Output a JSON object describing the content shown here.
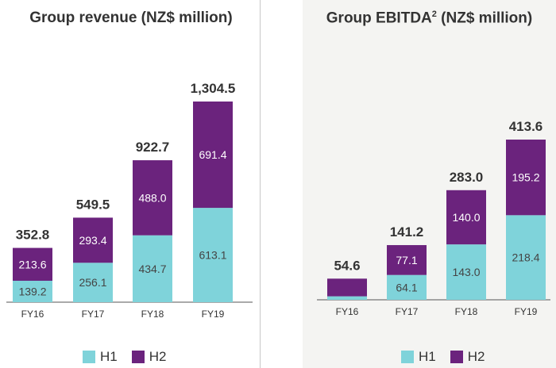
{
  "colors": {
    "h1": "#7fd3da",
    "h2": "#6b237d",
    "axis": "#555555",
    "total_text": "#333333",
    "bar_text": "#444444",
    "bar_text_h2": "#ffffff"
  },
  "legend": {
    "h1": "H1",
    "h2": "H2"
  },
  "chart_data": [
    {
      "type": "bar",
      "stacked": true,
      "title": "Group revenue (NZ$ million)",
      "categories": [
        "FY16",
        "FY17",
        "FY18",
        "FY19"
      ],
      "series": [
        {
          "name": "H1",
          "values": [
            139.2,
            256.1,
            434.7,
            613.1
          ],
          "labels": [
            "139.2",
            "256.1",
            "434.7",
            "613.1"
          ]
        },
        {
          "name": "H2",
          "values": [
            213.6,
            293.4,
            488.0,
            691.4
          ],
          "labels": [
            "213.6",
            "293.4",
            "488.0",
            "691.4"
          ]
        }
      ],
      "totals": [
        "352.8",
        "549.5",
        "922.7",
        "1,304.5"
      ],
      "ylim": [
        0,
        1304.5
      ],
      "legend_position": "bottom"
    },
    {
      "type": "bar",
      "stacked": true,
      "title": "Group EBITDA",
      "title_superscript": "2",
      "title_suffix": " (NZ$ million)",
      "categories": [
        "FY16",
        "FY17",
        "FY18",
        "FY19"
      ],
      "series": [
        {
          "name": "H1",
          "values": [
            9.0,
            64.1,
            143.0,
            218.4
          ],
          "labels": [
            "",
            "64.1",
            "143.0",
            "218.4"
          ]
        },
        {
          "name": "H2",
          "values": [
            45.6,
            77.1,
            140.0,
            195.2
          ],
          "labels": [
            "",
            "77.1",
            "140.0",
            "195.2"
          ]
        }
      ],
      "totals": [
        "54.6",
        "141.2",
        "283.0",
        "413.6"
      ],
      "ylim": [
        0,
        413.6
      ],
      "legend_position": "bottom"
    }
  ]
}
